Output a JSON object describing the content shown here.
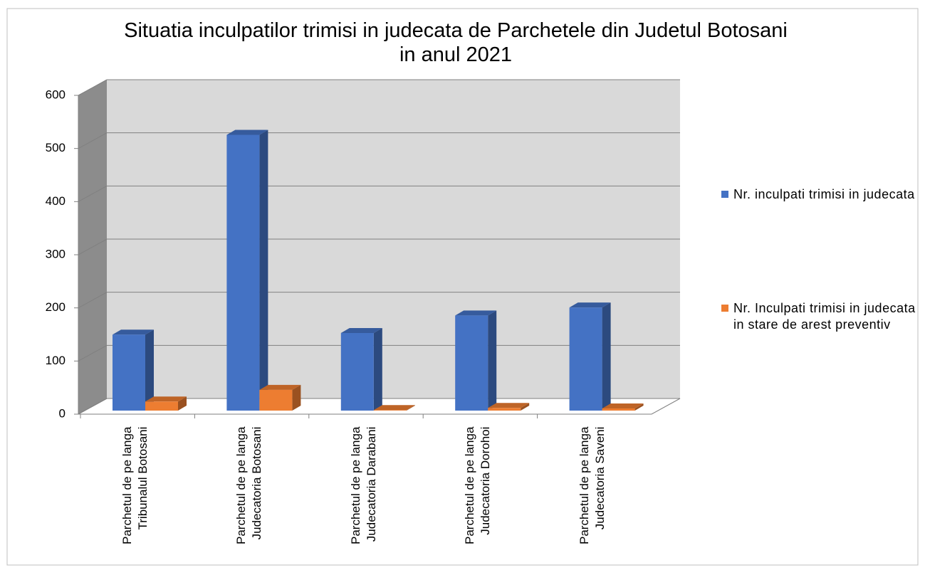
{
  "chart_data": {
    "type": "bar3d",
    "title": "Situatia inculpatilor trimisi in judecata de Parchetele din Judetul Botosani in anul 2021",
    "categories": [
      "Parchetul de pe langa\nTribunalul Botosani",
      "Parchetul de pe langa\nJudecatoria Botosani",
      "Parchetul de pe langa\nJudecatoria Darabani",
      "Parchetul de pe langa\nJudecatoria Dorohoi",
      "Parchetul de pe langa\nJudecatoria Saveni"
    ],
    "series": [
      {
        "name": "Nr. inculpati trimisi in judecata",
        "color": "#4472c4",
        "values": [
          143,
          519,
          146,
          179,
          194
        ]
      },
      {
        "name": "Nr. Inculpati trimisi in judecata in stare de arest preventiv",
        "color": "#ed7d31",
        "values": [
          17,
          39,
          1,
          5,
          4
        ]
      }
    ],
    "ylim": [
      0,
      600
    ],
    "yticks": [
      0,
      100,
      200,
      300,
      400,
      500,
      600
    ],
    "grid": true,
    "legend": "right"
  }
}
